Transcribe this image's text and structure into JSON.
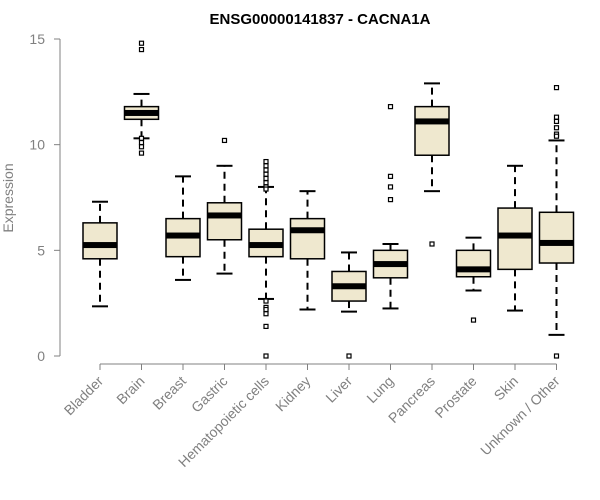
{
  "chart_data": {
    "type": "boxplot",
    "title": "ENSG00000141837 - CACNA1A",
    "xlabel": "",
    "ylabel": "Expression",
    "ylim": [
      0,
      15
    ],
    "yticks": [
      0,
      5,
      10,
      15
    ],
    "grid": false,
    "box_fill": "#efe8cf",
    "line_color": "#000000",
    "categories": [
      {
        "label": "Bladder",
        "q1": 4.6,
        "median": 5.25,
        "q3": 6.3,
        "whisker_low": 2.35,
        "whisker_high": 7.3,
        "outliers": []
      },
      {
        "label": "Brain",
        "q1": 11.2,
        "median": 11.5,
        "q3": 11.8,
        "whisker_low": 10.3,
        "whisker_high": 12.4,
        "outliers": [
          14.8,
          14.5,
          10.3,
          10.1,
          9.9,
          9.6
        ]
      },
      {
        "label": "Breast",
        "q1": 4.7,
        "median": 5.7,
        "q3": 6.5,
        "whisker_low": 3.6,
        "whisker_high": 8.5,
        "outliers": []
      },
      {
        "label": "Gastric",
        "q1": 5.5,
        "median": 6.65,
        "q3": 7.25,
        "whisker_low": 3.9,
        "whisker_high": 9.0,
        "outliers": [
          10.2
        ]
      },
      {
        "label": "Hematopoietic cells",
        "q1": 4.7,
        "median": 5.25,
        "q3": 6.0,
        "whisker_low": 2.7,
        "whisker_high": 8.0,
        "outliers": [
          9.2,
          9.0,
          8.8,
          8.6,
          8.4,
          8.2,
          8.0,
          7.9,
          2.6,
          2.3,
          2.2,
          2.0,
          1.4,
          0.0
        ]
      },
      {
        "label": "Kidney",
        "q1": 4.6,
        "median": 5.95,
        "q3": 6.5,
        "whisker_low": 2.2,
        "whisker_high": 7.8,
        "outliers": []
      },
      {
        "label": "Liver",
        "q1": 2.6,
        "median": 3.3,
        "q3": 4.0,
        "whisker_low": 2.1,
        "whisker_high": 4.9,
        "outliers": [
          0.0
        ]
      },
      {
        "label": "Lung",
        "q1": 3.7,
        "median": 4.35,
        "q3": 5.0,
        "whisker_low": 2.25,
        "whisker_high": 5.3,
        "outliers": [
          11.8,
          8.5,
          8.0,
          7.4
        ]
      },
      {
        "label": "Pancreas",
        "q1": 9.5,
        "median": 11.1,
        "q3": 11.8,
        "whisker_low": 7.8,
        "whisker_high": 12.9,
        "outliers": [
          5.3
        ]
      },
      {
        "label": "Prostate",
        "q1": 3.75,
        "median": 4.1,
        "q3": 5.0,
        "whisker_low": 3.1,
        "whisker_high": 5.6,
        "outliers": [
          1.7
        ]
      },
      {
        "label": "Skin",
        "q1": 4.1,
        "median": 5.7,
        "q3": 7.0,
        "whisker_low": 2.15,
        "whisker_high": 9.0,
        "outliers": []
      },
      {
        "label": "Unknown / Other",
        "q1": 4.4,
        "median": 5.35,
        "q3": 6.8,
        "whisker_low": 1.0,
        "whisker_high": 10.2,
        "outliers": [
          12.7,
          11.3,
          11.1,
          10.8,
          10.5,
          10.4,
          0.0
        ]
      }
    ]
  }
}
